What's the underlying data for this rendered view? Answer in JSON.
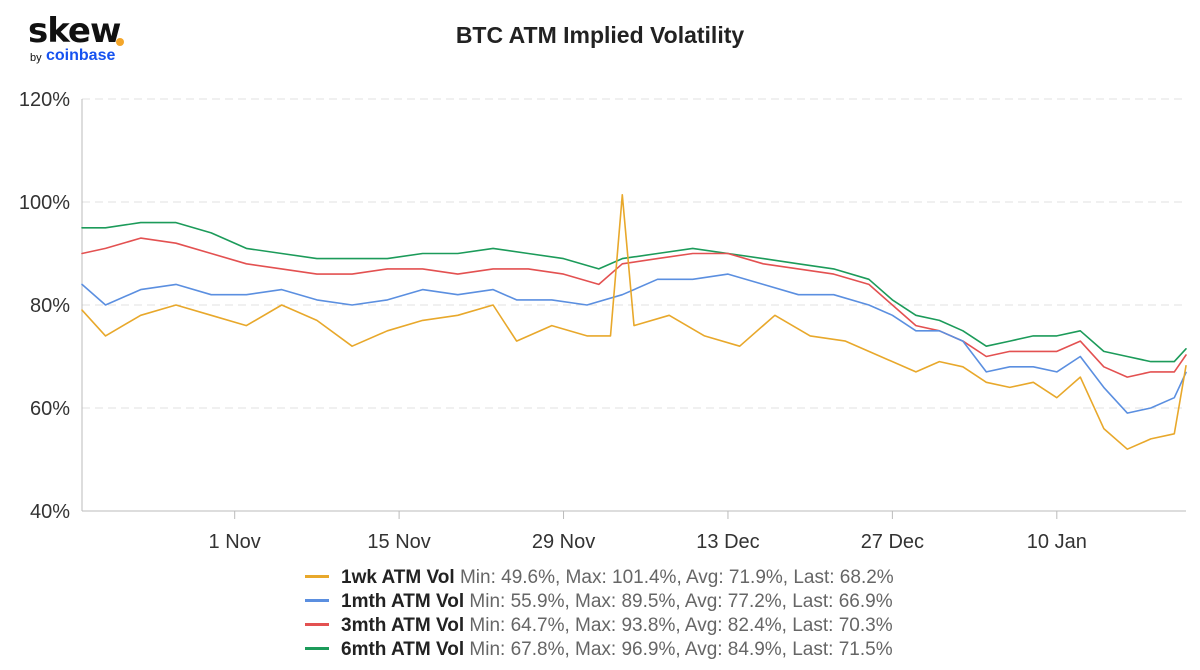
{
  "logo": {
    "word": "skew",
    "by": "by",
    "brand": "coinbase"
  },
  "chart_data": {
    "type": "line",
    "title": "BTC ATM Implied Volatility",
    "xlabel": "",
    "ylabel": "",
    "x_range": [
      "2020-10-19",
      "2021-01-21"
    ],
    "ylim": [
      40,
      120
    ],
    "y_ticks": [
      "40%",
      "60%",
      "80%",
      "100%",
      "120%"
    ],
    "x_ticks": [
      {
        "date": "2020-11-01",
        "label": "1 Nov"
      },
      {
        "date": "2020-11-15",
        "label": "15 Nov"
      },
      {
        "date": "2020-11-29",
        "label": "29 Nov"
      },
      {
        "date": "2020-12-13",
        "label": "13 Dec"
      },
      {
        "date": "2020-12-27",
        "label": "27 Dec"
      },
      {
        "date": "2021-01-10",
        "label": "10 Jan"
      }
    ],
    "grid": "horizontal-dashed",
    "legend_position": "bottom",
    "series": [
      {
        "name": "1wk ATM Vol",
        "stats": "Min: 49.6%, Max: 101.4%, Avg: 71.9%, Last: 68.2%",
        "color": "#e8a82b",
        "points": [
          [
            "2020-10-19",
            79
          ],
          [
            "2020-10-21",
            74
          ],
          [
            "2020-10-24",
            78
          ],
          [
            "2020-10-27",
            80
          ],
          [
            "2020-10-30",
            78
          ],
          [
            "2020-11-02",
            76
          ],
          [
            "2020-11-05",
            80
          ],
          [
            "2020-11-08",
            77
          ],
          [
            "2020-11-11",
            72
          ],
          [
            "2020-11-14",
            75
          ],
          [
            "2020-11-17",
            77
          ],
          [
            "2020-11-20",
            78
          ],
          [
            "2020-11-23",
            80
          ],
          [
            "2020-11-25",
            73
          ],
          [
            "2020-11-28",
            76
          ],
          [
            "2020-12-01",
            74
          ],
          [
            "2020-12-03",
            74
          ],
          [
            "2020-12-04",
            101.4
          ],
          [
            "2020-12-05",
            76
          ],
          [
            "2020-12-08",
            78
          ],
          [
            "2020-12-11",
            74
          ],
          [
            "2020-12-14",
            72
          ],
          [
            "2020-12-17",
            78
          ],
          [
            "2020-12-20",
            74
          ],
          [
            "2020-12-23",
            73
          ],
          [
            "2020-12-26",
            70
          ],
          [
            "2020-12-29",
            67
          ],
          [
            "2020-12-31",
            69
          ],
          [
            "2021-01-02",
            68
          ],
          [
            "2021-01-04",
            65
          ],
          [
            "2021-01-06",
            64
          ],
          [
            "2021-01-08",
            65
          ],
          [
            "2021-01-10",
            62
          ],
          [
            "2021-01-12",
            66
          ],
          [
            "2021-01-14",
            56
          ],
          [
            "2021-01-16",
            52
          ],
          [
            "2021-01-18",
            54
          ],
          [
            "2021-01-20",
            55
          ],
          [
            "2021-01-21",
            68.2
          ]
        ]
      },
      {
        "name": "1mth ATM Vol",
        "stats": "Min: 55.9%, Max: 89.5%, Avg: 77.2%, Last: 66.9%",
        "color": "#5b8fe0",
        "points": [
          [
            "2020-10-19",
            84
          ],
          [
            "2020-10-21",
            80
          ],
          [
            "2020-10-24",
            83
          ],
          [
            "2020-10-27",
            84
          ],
          [
            "2020-10-30",
            82
          ],
          [
            "2020-11-02",
            82
          ],
          [
            "2020-11-05",
            83
          ],
          [
            "2020-11-08",
            81
          ],
          [
            "2020-11-11",
            80
          ],
          [
            "2020-11-14",
            81
          ],
          [
            "2020-11-17",
            83
          ],
          [
            "2020-11-20",
            82
          ],
          [
            "2020-11-23",
            83
          ],
          [
            "2020-11-25",
            81
          ],
          [
            "2020-11-28",
            81
          ],
          [
            "2020-12-01",
            80
          ],
          [
            "2020-12-04",
            82
          ],
          [
            "2020-12-07",
            85
          ],
          [
            "2020-12-10",
            85
          ],
          [
            "2020-12-13",
            86
          ],
          [
            "2020-12-16",
            84
          ],
          [
            "2020-12-19",
            82
          ],
          [
            "2020-12-22",
            82
          ],
          [
            "2020-12-25",
            80
          ],
          [
            "2020-12-27",
            78
          ],
          [
            "2020-12-29",
            75
          ],
          [
            "2020-12-31",
            75
          ],
          [
            "2021-01-02",
            73
          ],
          [
            "2021-01-04",
            67
          ],
          [
            "2021-01-06",
            68
          ],
          [
            "2021-01-08",
            68
          ],
          [
            "2021-01-10",
            67
          ],
          [
            "2021-01-12",
            70
          ],
          [
            "2021-01-14",
            64
          ],
          [
            "2021-01-16",
            59
          ],
          [
            "2021-01-18",
            60
          ],
          [
            "2021-01-20",
            62
          ],
          [
            "2021-01-21",
            66.9
          ]
        ]
      },
      {
        "name": "3mth ATM Vol",
        "stats": "Min: 64.7%, Max: 93.8%, Avg: 82.4%, Last: 70.3%",
        "color": "#e35151",
        "points": [
          [
            "2020-10-19",
            90
          ],
          [
            "2020-10-21",
            91
          ],
          [
            "2020-10-24",
            93
          ],
          [
            "2020-10-27",
            92
          ],
          [
            "2020-10-30",
            90
          ],
          [
            "2020-11-02",
            88
          ],
          [
            "2020-11-05",
            87
          ],
          [
            "2020-11-08",
            86
          ],
          [
            "2020-11-11",
            86
          ],
          [
            "2020-11-14",
            87
          ],
          [
            "2020-11-17",
            87
          ],
          [
            "2020-11-20",
            86
          ],
          [
            "2020-11-23",
            87
          ],
          [
            "2020-11-26",
            87
          ],
          [
            "2020-11-29",
            86
          ],
          [
            "2020-12-02",
            84
          ],
          [
            "2020-12-04",
            88
          ],
          [
            "2020-12-07",
            89
          ],
          [
            "2020-12-10",
            90
          ],
          [
            "2020-12-13",
            90
          ],
          [
            "2020-12-16",
            88
          ],
          [
            "2020-12-19",
            87
          ],
          [
            "2020-12-22",
            86
          ],
          [
            "2020-12-25",
            84
          ],
          [
            "2020-12-27",
            80
          ],
          [
            "2020-12-29",
            76
          ],
          [
            "2020-12-31",
            75
          ],
          [
            "2021-01-02",
            73
          ],
          [
            "2021-01-04",
            70
          ],
          [
            "2021-01-06",
            71
          ],
          [
            "2021-01-08",
            71
          ],
          [
            "2021-01-10",
            71
          ],
          [
            "2021-01-12",
            73
          ],
          [
            "2021-01-14",
            68
          ],
          [
            "2021-01-16",
            66
          ],
          [
            "2021-01-18",
            67
          ],
          [
            "2021-01-20",
            67
          ],
          [
            "2021-01-21",
            70.3
          ]
        ]
      },
      {
        "name": "6mth ATM Vol",
        "stats": "Min: 67.8%, Max: 96.9%, Avg: 84.9%, Last: 71.5%",
        "color": "#1c9b5a",
        "points": [
          [
            "2020-10-19",
            95
          ],
          [
            "2020-10-21",
            95
          ],
          [
            "2020-10-24",
            96
          ],
          [
            "2020-10-27",
            96
          ],
          [
            "2020-10-30",
            94
          ],
          [
            "2020-11-02",
            91
          ],
          [
            "2020-11-05",
            90
          ],
          [
            "2020-11-08",
            89
          ],
          [
            "2020-11-11",
            89
          ],
          [
            "2020-11-14",
            89
          ],
          [
            "2020-11-17",
            90
          ],
          [
            "2020-11-20",
            90
          ],
          [
            "2020-11-23",
            91
          ],
          [
            "2020-11-26",
            90
          ],
          [
            "2020-11-29",
            89
          ],
          [
            "2020-12-02",
            87
          ],
          [
            "2020-12-04",
            89
          ],
          [
            "2020-12-07",
            90
          ],
          [
            "2020-12-10",
            91
          ],
          [
            "2020-12-13",
            90
          ],
          [
            "2020-12-16",
            89
          ],
          [
            "2020-12-19",
            88
          ],
          [
            "2020-12-22",
            87
          ],
          [
            "2020-12-25",
            85
          ],
          [
            "2020-12-27",
            81
          ],
          [
            "2020-12-29",
            78
          ],
          [
            "2020-12-31",
            77
          ],
          [
            "2021-01-02",
            75
          ],
          [
            "2021-01-04",
            72
          ],
          [
            "2021-01-06",
            73
          ],
          [
            "2021-01-08",
            74
          ],
          [
            "2021-01-10",
            74
          ],
          [
            "2021-01-12",
            75
          ],
          [
            "2021-01-14",
            71
          ],
          [
            "2021-01-16",
            70
          ],
          [
            "2021-01-18",
            69
          ],
          [
            "2021-01-20",
            69
          ],
          [
            "2021-01-21",
            71.5
          ]
        ]
      }
    ]
  }
}
